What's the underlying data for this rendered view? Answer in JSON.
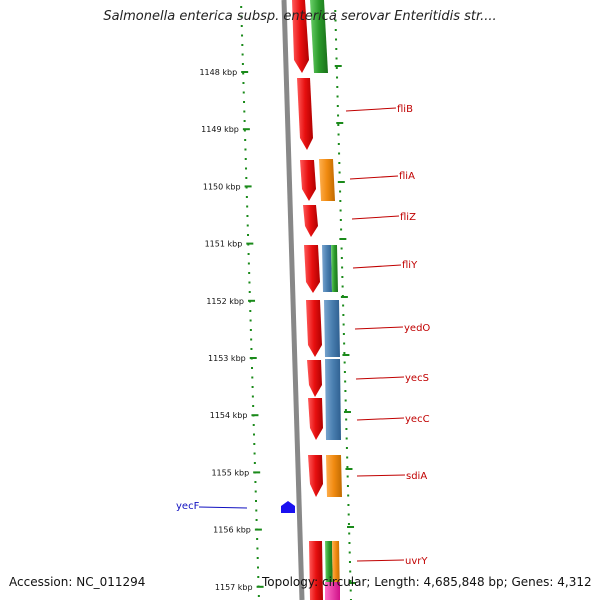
{
  "title": "Salmonella enterica subsp. enterica serovar Enteritidis str....",
  "footer": {
    "accession": "Accession: NC_011294",
    "summary": "Topology: circular; Length: 4,685,848 bp; Genes: 4,312"
  },
  "ruler": {
    "labels": [
      "1148 kbp",
      "1149 kbp",
      "1150 kbp",
      "1151 kbp",
      "1152 kbp",
      "1153 kbp",
      "1154 kbp",
      "1155 kbp",
      "1156 kbp",
      "1157 kbp"
    ]
  },
  "genes_right": [
    "fliB",
    "fliA",
    "fliZ",
    "fliY",
    "yedO",
    "yecS",
    "yecC",
    "sdiA",
    "uvrY"
  ],
  "genes_left": [
    "yecF"
  ],
  "colors": {
    "cds": "#e81010",
    "orange": "#f08a10",
    "blue": "#4a7fb0",
    "green": "#2a9a2a",
    "pink": "#f020a0",
    "ticks": "#1a8a1a",
    "backbone": "#888888",
    "label_red": "#c00000",
    "label_blue": "#1010c0"
  },
  "icons": {
    "feature_marker": "blue-pentagon-icon"
  }
}
